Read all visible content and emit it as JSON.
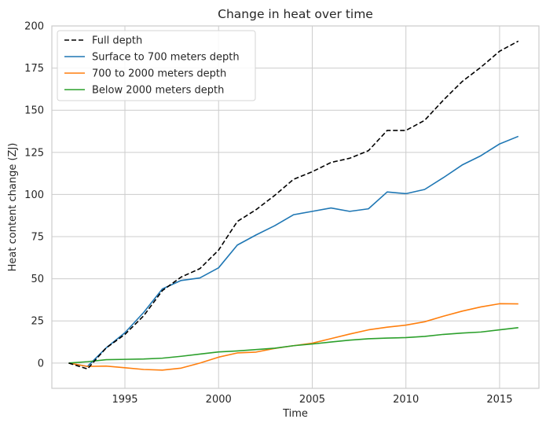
{
  "chart_data": {
    "type": "line",
    "title": "Change in heat over time",
    "xlabel": "Time",
    "ylabel": "Heat content change (ZJ)",
    "xlim": [
      1991.1,
      2017.1
    ],
    "ylim": [
      -15,
      200
    ],
    "xticks": [
      1995,
      2000,
      2005,
      2010,
      2015
    ],
    "yticks": [
      0,
      25,
      50,
      75,
      100,
      125,
      150,
      175,
      200
    ],
    "grid": true,
    "legend_position": "top-left",
    "x": [
      1992,
      1993,
      1994,
      1995,
      1996,
      1997,
      1998,
      1999,
      2000,
      2001,
      2002,
      2003,
      2004,
      2005,
      2006,
      2007,
      2008,
      2009,
      2010,
      2011,
      2012,
      2013,
      2014,
      2015,
      2016
    ],
    "series": [
      {
        "name": "Full depth",
        "color": "#000000",
        "dash": "dashed",
        "values": [
          0,
          -3.5,
          9,
          17,
          28,
          43,
          51,
          56,
          67,
          84,
          91,
          99.5,
          109,
          113.5,
          119,
          121.5,
          126,
          138,
          138,
          144,
          156,
          167,
          175.5,
          185,
          191
        ]
      },
      {
        "name": "Surface to 700 meters depth",
        "color": "#1f77b4",
        "dash": "solid",
        "values": [
          0,
          -2,
          9,
          18,
          30,
          44,
          49,
          50.5,
          56.5,
          70,
          76,
          81.5,
          88,
          90,
          92,
          90,
          91.5,
          101.5,
          100.5,
          103,
          110,
          117.5,
          123,
          130,
          134.5
        ]
      },
      {
        "name": "700 to 2000 meters depth",
        "color": "#ff7f0e",
        "dash": "solid",
        "values": [
          0,
          -2,
          -1.8,
          -2.8,
          -3.8,
          -4.2,
          -3,
          0,
          3.5,
          6,
          6.5,
          8.7,
          10.3,
          11.8,
          14.5,
          17.2,
          19.7,
          21.3,
          22.5,
          24.5,
          27.8,
          30.8,
          33.3,
          35.2,
          35.1
        ]
      },
      {
        "name": "Below 2000 meters depth",
        "color": "#2ca02c",
        "dash": "solid",
        "values": [
          0,
          0.8,
          2,
          2.2,
          2.4,
          2.9,
          4,
          5.3,
          6.6,
          7.2,
          8,
          8.8,
          10.3,
          11.3,
          12.5,
          13.6,
          14.4,
          14.8,
          15.1,
          15.8,
          17,
          17.8,
          18.4,
          19.7,
          21
        ]
      }
    ]
  }
}
